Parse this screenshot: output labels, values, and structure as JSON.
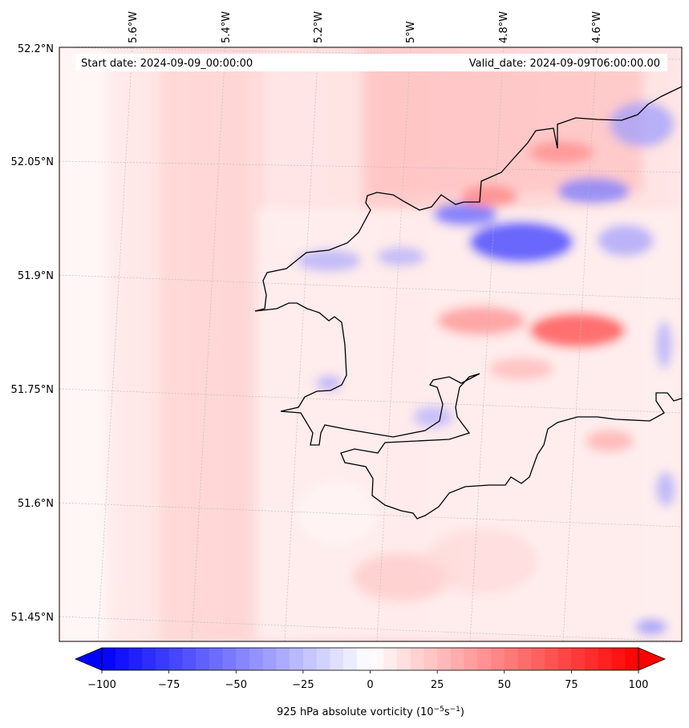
{
  "map": {
    "start_date": "Start date: 2024-09-09_00:00:00",
    "valid_date": "Valid_date: 2024-09-09T06:00:00.00",
    "lon_labels": [
      "5.6°W",
      "5.4°W",
      "5.2°W",
      "5°W",
      "4.8°W",
      "4.6°W"
    ],
    "lat_labels": [
      "52.2°N",
      "52.05°N",
      "51.9°N",
      "51.75°N",
      "51.6°N",
      "51.45°N"
    ],
    "field": "925 hPa absolute vorticity",
    "coastline_color": "#000000"
  },
  "colorbar": {
    "label_main": "925 hPa absolute vorticity (10",
    "label_exp1": "−5",
    "label_mid": "s",
    "label_exp2": "−1",
    "label_end": ")",
    "ticks": [
      "−100",
      "−75",
      "−50",
      "−25",
      "0",
      "25",
      "50",
      "75",
      "100"
    ],
    "min": -100,
    "max": 100,
    "levels": 40,
    "extend": "both",
    "colormap": "bwr",
    "low_color": "#0000ff",
    "mid_color": "#ffffff",
    "high_color": "#ff0000"
  }
}
